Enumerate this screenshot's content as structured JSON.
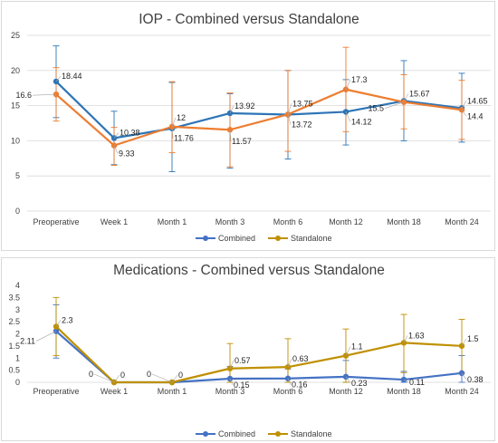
{
  "chart_data": [
    {
      "type": "line",
      "title": "IOP - Combined versus Standalone",
      "categories": [
        "Preoperative",
        "Week 1",
        "Month 1",
        "Month 3",
        "Month 6",
        "Month 12",
        "Month 18",
        "Month 24"
      ],
      "ylim": [
        0,
        25
      ],
      "yticks": [
        "0",
        "5",
        "10",
        "15",
        "20",
        "25"
      ],
      "grid": true,
      "legend": "bottom",
      "series": [
        {
          "name": "Combined",
          "color": "#2e75b6",
          "values": [
            18.44,
            10.38,
            11.76,
            13.92,
            13.72,
            14.12,
            15.67,
            14.65
          ],
          "labels": [
            "18.44",
            "10.38",
            "11.76",
            "13.92",
            "13.72",
            "14.12",
            "15.67",
            "14.65"
          ],
          "err_low": [
            13.3,
            6.6,
            5.6,
            6.1,
            7.4,
            9.4,
            10.0,
            9.8
          ],
          "err_high": [
            23.5,
            14.2,
            18.3,
            16.7,
            20.0,
            18.7,
            21.4,
            19.6
          ]
        },
        {
          "name": "Standalone",
          "color": "#ed7d31",
          "values": [
            16.6,
            9.33,
            12,
            11.57,
            13.75,
            17.3,
            15.5,
            14.4
          ],
          "labels": [
            "16.6",
            "9.33",
            "12",
            "11.57",
            "13.75",
            "17.3",
            "15.5",
            "14.4"
          ],
          "err_low": [
            12.8,
            6.5,
            8.3,
            6.3,
            8.5,
            11.3,
            11.7,
            10.2
          ],
          "err_high": [
            20.4,
            11.9,
            18.4,
            16.8,
            20.0,
            23.3,
            19.4,
            18.6
          ]
        }
      ],
      "legend_entries": [
        {
          "name": "Combined",
          "color": "#4472c4"
        },
        {
          "name": "Standalone",
          "color": "#bf9000"
        }
      ]
    },
    {
      "type": "line",
      "title": "Medications - Combined versus Standalone",
      "categories": [
        "Preoperative",
        "Week 1",
        "Month 1",
        "Month 3",
        "Month 6",
        "Month 12",
        "Month 18",
        "Month 24"
      ],
      "ylim": [
        0,
        4
      ],
      "yticks": [
        "0",
        "0.5",
        "1",
        "1.5",
        "2",
        "2.5",
        "3",
        "3.5",
        "4"
      ],
      "grid": false,
      "legend": "bottom",
      "series": [
        {
          "name": "Combined",
          "color": "#4472c4",
          "values": [
            2.11,
            0,
            0,
            0.15,
            0.16,
            0.23,
            0.11,
            0.38
          ],
          "labels": [
            "2.11",
            "0",
            "0",
            "0.15",
            "0.16",
            "0.23",
            "0.11",
            "0.38"
          ],
          "err_low": [
            1.0,
            0,
            0,
            0,
            0,
            0,
            0,
            0
          ],
          "err_high": [
            3.2,
            0,
            0,
            0.65,
            0.55,
            0.9,
            0.45,
            1.1
          ]
        },
        {
          "name": "Standalone",
          "color": "#bf9000",
          "values": [
            2.3,
            0,
            0,
            0.57,
            0.63,
            1.1,
            1.63,
            1.5
          ],
          "labels": [
            "2.3",
            "0",
            "0",
            "0.57",
            "0.63",
            "1.1",
            "1.63",
            "1.5"
          ],
          "err_low": [
            1.1,
            0,
            0,
            0,
            0,
            0,
            0.4,
            0.4
          ],
          "err_high": [
            3.5,
            0,
            0,
            1.6,
            1.8,
            2.2,
            2.8,
            2.6
          ]
        }
      ],
      "legend_entries": [
        {
          "name": "Combined",
          "color": "#4472c4"
        },
        {
          "name": "Standalone",
          "color": "#bf9000"
        }
      ]
    }
  ]
}
